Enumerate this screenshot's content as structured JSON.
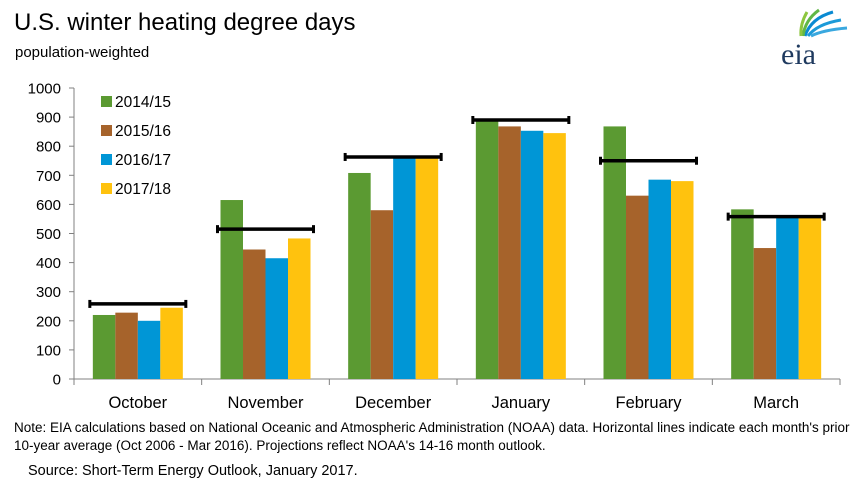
{
  "title": "U.S. winter heating degree days",
  "subtitle": "population-weighted",
  "logo_text": "eia",
  "note": "Note: EIA calculations based on National Oceanic and Atmospheric Administration (NOAA) data. Horizontal lines indicate each month's prior 10-year average (Oct 2006 - Mar 2016). Projections reflect NOAA's 14-16 month outlook.",
  "source": "Source: Short-Term Energy Outlook, January 2017.",
  "chart_data": {
    "type": "bar",
    "title": "U.S. winter heating degree days",
    "subtitle": "population-weighted",
    "categories": [
      "October",
      "November",
      "December",
      "January",
      "February",
      "March"
    ],
    "series": [
      {
        "name": "2014/15",
        "color": "#5b9a32",
        "values": [
          220,
          615,
          708,
          890,
          868,
          583
        ]
      },
      {
        "name": "2015/16",
        "color": "#a6632b",
        "values": [
          228,
          445,
          580,
          868,
          630,
          450
        ]
      },
      {
        "name": "2016/17",
        "color": "#0096d6",
        "values": [
          200,
          415,
          760,
          853,
          685,
          555
        ]
      },
      {
        "name": "2017/18",
        "color": "#ffc20e",
        "values": [
          245,
          483,
          760,
          845,
          680,
          555
        ]
      }
    ],
    "reference_line": {
      "color": "#000000",
      "values": [
        258,
        515,
        763,
        890,
        750,
        558
      ]
    },
    "yticks": [
      0,
      100,
      200,
      300,
      400,
      500,
      600,
      700,
      800,
      900,
      1000
    ],
    "ylim": [
      0,
      1000
    ],
    "grid": false,
    "legend_position": "top-left"
  }
}
